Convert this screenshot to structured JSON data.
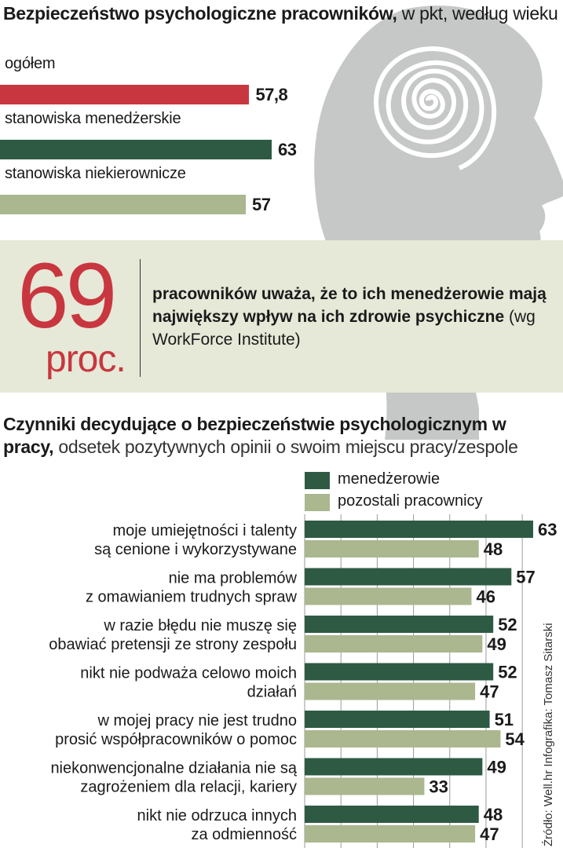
{
  "section1": {
    "title_bold": "Bezpieczeństwo psychologiczne pracowników,",
    "title_rest": " w pkt, według wieku"
  },
  "stat": {
    "number": "69",
    "unit": "proc.",
    "text_bold": "pracowników uważa, że to ich menedżerowie mają największy wpływ na ich zdrowie psychiczne",
    "text_source": " (wg WorkForce Institute)"
  },
  "section2": {
    "title_bold": "Czynniki decydujące o bezpieczeństwie psychologicznym w pracy,",
    "title_rest": " odsetek pozytywnych opinii o swoim miejscu pracy/zespole"
  },
  "credit": "Źródło: Well.hr     Infografika: Tomasz Sitarski",
  "colors": {
    "red": "#c8373f",
    "dark_green": "#2e5a43",
    "light_green": "#aab78f",
    "band": "#e6e8d8",
    "silhouette": "#c6c7c7"
  },
  "chart_data": [
    {
      "type": "bar",
      "orientation": "horizontal",
      "categories": [
        "ogółem",
        "stanowiska menedżerskie",
        "stanowiska niekierownicze"
      ],
      "values": [
        57.8,
        63,
        57
      ],
      "value_labels": [
        "57,8",
        "63",
        "57"
      ],
      "colors": [
        "#c8373f",
        "#2e5a43",
        "#aab78f"
      ],
      "xlim": [
        0,
        63
      ]
    },
    {
      "type": "bar",
      "orientation": "horizontal",
      "categories": [
        [
          "moje umiejętności i talenty",
          "są cenione i wykorzystywane"
        ],
        [
          "nie ma problemów",
          "z omawianiem trudnych spraw"
        ],
        [
          "w razie błędu nie muszę się",
          "obawiać pretensji ze strony zespołu"
        ],
        [
          "nikt nie podważa celowo moich",
          "działań"
        ],
        [
          "w mojej pracy nie jest trudno",
          "prosić współpracowników o pomoc"
        ],
        [
          "niekonwencjonalne działania nie są",
          "zagrożeniem dla relacji, kariery"
        ],
        [
          "nikt nie odrzuca innych",
          "za odmienność"
        ]
      ],
      "series": [
        {
          "name": "menedżerowie",
          "values": [
            63,
            57,
            52,
            52,
            51,
            49,
            48
          ],
          "color": "#2e5a43"
        },
        {
          "name": "pozostali pracownicy",
          "values": [
            48,
            46,
            49,
            47,
            54,
            33,
            47
          ],
          "color": "#aab78f"
        }
      ],
      "legend": "top-right",
      "grid": true,
      "xlim": [
        0,
        63
      ]
    }
  ]
}
